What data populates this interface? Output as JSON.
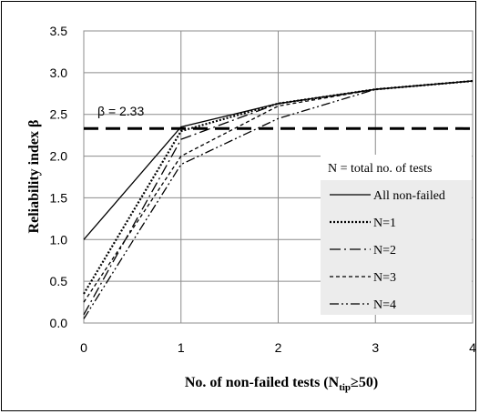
{
  "chart_data": {
    "type": "line",
    "xlabel": "No. of non-failed tests (N",
    "xlabel_sub": "tip",
    "xlabel_tail": "≥50)",
    "ylabel": "Reliability index β",
    "xlim": [
      0,
      4
    ],
    "ylim": [
      0,
      3.5
    ],
    "x_ticks": [
      "0",
      "1",
      "2",
      "3",
      "4"
    ],
    "y_ticks": [
      "0.0",
      "0.5",
      "1.0",
      "1.5",
      "2.0",
      "2.5",
      "3.0",
      "3.5"
    ],
    "grid": true,
    "x": [
      0,
      1,
      2,
      3,
      4
    ],
    "series": [
      {
        "name": "All non-failed",
        "values": [
          1.0,
          2.35,
          2.63,
          2.8,
          2.9
        ],
        "dash": "solid"
      },
      {
        "name": "N=1",
        "values": [
          0.35,
          2.3,
          2.63,
          2.8,
          2.9
        ],
        "dash": "dot"
      },
      {
        "name": "N=2",
        "values": [
          0.1,
          2.2,
          2.63,
          2.8,
          2.9
        ],
        "dash": "dashdot"
      },
      {
        "name": "N=3",
        "values": [
          0.25,
          2.0,
          2.6,
          2.8,
          2.9
        ],
        "dash": "shortdash"
      },
      {
        "name": "N=4",
        "values": [
          0.05,
          1.9,
          2.45,
          2.8,
          2.9
        ],
        "dash": "dashdotdot"
      }
    ],
    "reference_line": {
      "label": "β = 2.33",
      "value": 2.33
    },
    "legend_title": "N = total no. of tests",
    "legend_position": "bottom-right"
  }
}
